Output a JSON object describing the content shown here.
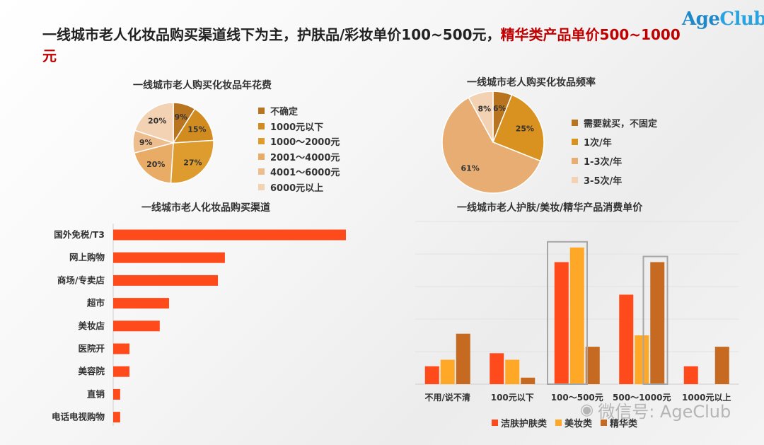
{
  "logo": {
    "part1": "Age",
    "part2": "Club"
  },
  "headline": {
    "main": "一线城市老人化妆品购买渠道线下为主，护肤品/彩妆单价100~500元，",
    "highlight": "精华类产品单价500~1000元"
  },
  "watermark": "微信号: AgeClub",
  "chart_data": [
    {
      "type": "pie",
      "title": "一线城市老人购买化妆品年花费",
      "labels": [
        "不确定",
        "1000元以下",
        "1000～2000元",
        "2001～4000元",
        "4001～6000元",
        "6000元以上"
      ],
      "values": [
        9,
        15,
        27,
        20,
        9,
        20
      ],
      "value_labels": [
        "9%",
        "15%",
        "27%",
        "20%",
        "9%",
        "20%"
      ],
      "colors": [
        "#b8741e",
        "#d18b1f",
        "#df9c2e",
        "#e8ac66",
        "#eebd8e",
        "#f2d2b3"
      ],
      "legend": "right"
    },
    {
      "type": "pie",
      "title": "一线城市老人购买化妆品频率",
      "labels": [
        "需要就买，不固定",
        "1次/年",
        "1-3次/年",
        "3-5次/年"
      ],
      "values": [
        6,
        25,
        61,
        8
      ],
      "value_labels": [
        "6%",
        "25%",
        "61%",
        "8%"
      ],
      "colors": [
        "#b8741e",
        "#d9921f",
        "#e8ad72",
        "#f2d2b3"
      ],
      "legend": "right"
    },
    {
      "type": "bar",
      "orientation": "horizontal",
      "title": "一线城市老人化妆品购买渠道",
      "categories": [
        "国外免税/T3",
        "网上购物",
        "商场/专卖店",
        "超市",
        "美妆店",
        "医院开",
        "美容院",
        "直销",
        "电话电视购物"
      ],
      "values": [
        100,
        48,
        45,
        24,
        20,
        7,
        7,
        3,
        3
      ],
      "color": "#ff4a1c"
    },
    {
      "type": "bar",
      "orientation": "vertical",
      "title": "一线城市老人护肤/美妆/精华产品消费单价",
      "categories": [
        "不用/说不清",
        "100元以下",
        "100～500元",
        "500～1000元",
        "1000元以上"
      ],
      "series": [
        {
          "name": "洁肤护肤类",
          "values": [
            11,
            19,
            75,
            55,
            11
          ],
          "color": "#ff4a1c"
        },
        {
          "name": "美妆类",
          "values": [
            15,
            15,
            84,
            30,
            0
          ],
          "color": "#ffa828"
        },
        {
          "name": "精华类",
          "values": [
            31,
            4,
            23,
            75,
            23
          ],
          "color": "#c56a20"
        }
      ],
      "ylim": [
        0,
        100
      ],
      "grid": true,
      "legend": "bottom",
      "highlighted_categories": [
        "100～500元",
        "500～1000元"
      ]
    }
  ]
}
